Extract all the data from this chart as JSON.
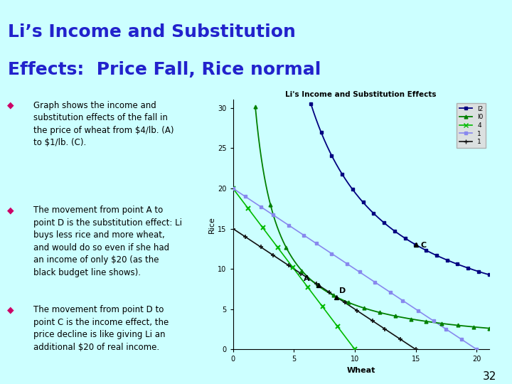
{
  "title_line1": "Li’s Income and Substitution",
  "title_line2": "Effects:  Price Fall, Rice normal",
  "title_color": "#2222cc",
  "bg_color": "#ccffff",
  "rule_color": "#cc0066",
  "bullet_color": "#cc0066",
  "bullet_points": [
    "Graph shows the income and\nsubstitution effects of the fall in\nthe price of wheat from $4/lb. (A)\nto $1/lb. (C).",
    "The movement from point A to\npoint D is the substitution effect: Li\nbuys less rice and more wheat,\nand would do so even if she had\nan income of only $20 (as the\nblack budget line shows).",
    "The movement from point D to\npoint C is the income effect, the\nprice decline is like giving Li an\nadditional $20 of real income."
  ],
  "graph_title": "Li's Income and Substitution Effects",
  "graph_bg": "#ccffff",
  "xlabel": "Wheat",
  "ylabel": "Rice",
  "xlim": [
    0,
    21
  ],
  "ylim": [
    0,
    31
  ],
  "xticks": [
    0,
    5,
    10,
    15,
    20
  ],
  "yticks": [
    0,
    5,
    10,
    15,
    20,
    25,
    30
  ],
  "point_A": [
    7.0,
    8.0
  ],
  "point_D": [
    8.5,
    6.5
  ],
  "point_C": [
    15.0,
    13.0
  ],
  "k2": 195,
  "k0": 55.25,
  "legend_entries": [
    "I2",
    "I0",
    "4",
    "1",
    "1"
  ],
  "legend_colors": [
    "#000080",
    "#008000",
    "#00cc00",
    "#8888ff",
    "#000000"
  ],
  "page_number": "32"
}
